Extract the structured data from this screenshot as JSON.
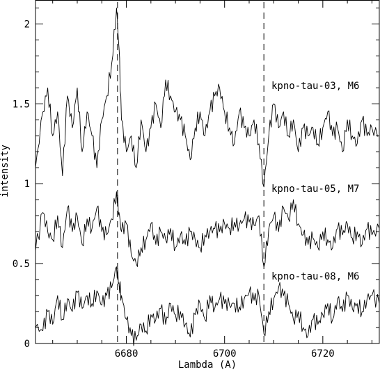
{
  "chart_data": {
    "type": "line",
    "title": "",
    "xlabel": "Lambda (A)",
    "ylabel": "intensity",
    "xlim": [
      6661.5,
      6731.5
    ],
    "ylim": [
      0,
      2.15
    ],
    "x_ticks": [
      6680,
      6700,
      6720
    ],
    "y_ticks": [
      0,
      0.5,
      1,
      1.5,
      2
    ],
    "y_tick_labels": [
      "0",
      "0.5",
      "1",
      "1.5",
      "2"
    ],
    "reference_lines_x": [
      6678.2,
      6708.0
    ],
    "series": [
      {
        "name": "kpno-tau-03, M6",
        "x": [
          6661.5,
          6663,
          6664,
          6665,
          6666,
          6667,
          6668,
          6669,
          6670,
          6671,
          6672,
          6673,
          6674,
          6675,
          6676,
          6677,
          6678,
          6678.5,
          6679,
          6680,
          6681,
          6682,
          6683,
          6684,
          6685,
          6686,
          6687,
          6688,
          6689,
          6690,
          6691,
          6692,
          6693,
          6694,
          6695,
          6696,
          6697,
          6698,
          6699,
          6700,
          6701,
          6702,
          6703,
          6704,
          6705,
          6706,
          6707,
          6708,
          6709,
          6710,
          6711,
          6712,
          6713,
          6714,
          6715,
          6716,
          6717,
          6718,
          6719,
          6720,
          6721,
          6722,
          6723,
          6724,
          6725,
          6726,
          6727,
          6728,
          6729,
          6730,
          6731.5
        ],
        "y": [
          1.1,
          1.45,
          1.6,
          1.3,
          1.45,
          1.05,
          1.55,
          1.35,
          1.6,
          1.2,
          1.45,
          1.3,
          1.1,
          1.4,
          1.55,
          1.75,
          2.1,
          1.85,
          1.4,
          1.2,
          1.3,
          1.1,
          1.4,
          1.2,
          1.35,
          1.5,
          1.35,
          1.65,
          1.55,
          1.45,
          1.4,
          1.3,
          1.15,
          1.35,
          1.45,
          1.3,
          1.45,
          1.55,
          1.6,
          1.45,
          1.35,
          1.25,
          1.45,
          1.35,
          1.3,
          1.4,
          1.25,
          0.98,
          1.3,
          1.5,
          1.35,
          1.45,
          1.3,
          1.4,
          1.2,
          1.35,
          1.3,
          1.35,
          1.25,
          1.35,
          1.45,
          1.3,
          1.35,
          1.2,
          1.4,
          1.3,
          1.25,
          1.4,
          1.3,
          1.35,
          1.3
        ]
      },
      {
        "name": "kpno-tau-05, M7",
        "x": [
          6661.5,
          6663,
          6664,
          6665,
          6666,
          6667,
          6668,
          6669,
          6670,
          6671,
          6672,
          6673,
          6674,
          6675,
          6676,
          6677,
          6678,
          6678.5,
          6679,
          6680,
          6681,
          6682,
          6683,
          6684,
          6685,
          6686,
          6687,
          6688,
          6689,
          6690,
          6691,
          6692,
          6693,
          6694,
          6695,
          6696,
          6697,
          6698,
          6699,
          6700,
          6701,
          6702,
          6703,
          6704,
          6705,
          6706,
          6707,
          6708,
          6709,
          6710,
          6711,
          6712,
          6713,
          6714,
          6715,
          6716,
          6717,
          6718,
          6719,
          6720,
          6721,
          6722,
          6723,
          6724,
          6725,
          6726,
          6727,
          6728,
          6729,
          6730,
          6731.5
        ],
        "y": [
          0.58,
          0.82,
          0.7,
          0.65,
          0.8,
          0.6,
          0.85,
          0.7,
          0.8,
          0.62,
          0.78,
          0.72,
          0.85,
          0.7,
          0.68,
          0.78,
          0.95,
          0.82,
          0.7,
          0.75,
          0.55,
          0.5,
          0.6,
          0.65,
          0.75,
          0.62,
          0.7,
          0.65,
          0.72,
          0.6,
          0.68,
          0.62,
          0.7,
          0.65,
          0.6,
          0.68,
          0.7,
          0.72,
          0.7,
          0.75,
          0.72,
          0.76,
          0.74,
          0.78,
          0.76,
          0.74,
          0.8,
          0.48,
          0.72,
          0.8,
          0.7,
          0.85,
          0.78,
          0.9,
          0.75,
          0.68,
          0.62,
          0.66,
          0.6,
          0.7,
          0.65,
          0.6,
          0.72,
          0.68,
          0.75,
          0.66,
          0.7,
          0.62,
          0.72,
          0.68,
          0.72
        ]
      },
      {
        "name": "kpno-tau-08, M6",
        "x": [
          6661.5,
          6663,
          6664,
          6665,
          6666,
          6667,
          6668,
          6669,
          6670,
          6671,
          6672,
          6673,
          6674,
          6675,
          6676,
          6677,
          6678,
          6678.5,
          6679,
          6680,
          6681,
          6682,
          6683,
          6684,
          6685,
          6686,
          6687,
          6688,
          6689,
          6690,
          6691,
          6692,
          6693,
          6694,
          6695,
          6696,
          6697,
          6698,
          6699,
          6700,
          6701,
          6702,
          6703,
          6704,
          6705,
          6706,
          6707,
          6708,
          6709,
          6710,
          6711,
          6712,
          6713,
          6714,
          6715,
          6716,
          6717,
          6718,
          6719,
          6720,
          6721,
          6722,
          6723,
          6724,
          6725,
          6726,
          6727,
          6728,
          6729,
          6730,
          6731.5
        ],
        "y": [
          0.1,
          0.08,
          0.2,
          0.12,
          0.3,
          0.15,
          0.28,
          0.2,
          0.32,
          0.22,
          0.3,
          0.25,
          0.33,
          0.24,
          0.3,
          0.35,
          0.48,
          0.38,
          0.3,
          0.15,
          0.05,
          0.02,
          0.12,
          0.08,
          0.18,
          0.15,
          0.22,
          0.12,
          0.25,
          0.18,
          0.2,
          0.12,
          0.04,
          0.18,
          0.25,
          0.15,
          0.3,
          0.22,
          0.28,
          0.25,
          0.24,
          0.25,
          0.23,
          0.28,
          0.32,
          0.27,
          0.3,
          0.06,
          0.2,
          0.28,
          0.35,
          0.3,
          0.25,
          0.15,
          0.2,
          0.1,
          0.05,
          0.15,
          0.12,
          0.18,
          0.25,
          0.15,
          0.28,
          0.2,
          0.3,
          0.22,
          0.25,
          0.2,
          0.28,
          0.3,
          0.25
        ]
      }
    ]
  }
}
